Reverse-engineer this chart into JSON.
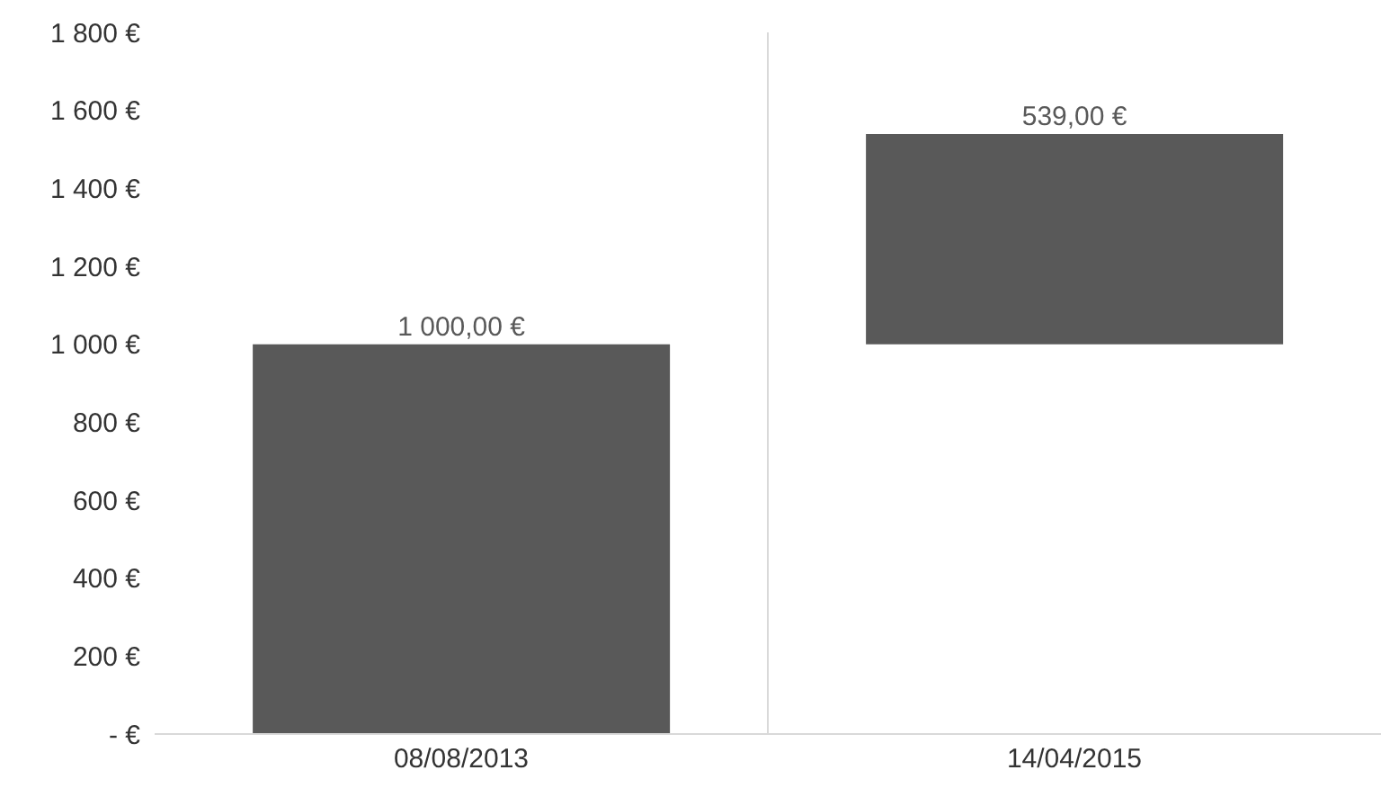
{
  "chart_data": {
    "type": "bar",
    "categories": [
      "08/08/2013",
      "14/04/2015"
    ],
    "values": [
      1000,
      539
    ],
    "base": [
      0,
      1000
    ],
    "color": "#595959",
    "value_labels": [
      "1 000,00 €",
      "539,00 €"
    ],
    "ylim": [
      0,
      1800
    ],
    "yticks": [
      {
        "value": 0,
        "label": "- €"
      },
      {
        "value": 200,
        "label": "200 €"
      },
      {
        "value": 400,
        "label": "400 €"
      },
      {
        "value": 600,
        "label": "600 €"
      },
      {
        "value": 800,
        "label": "800 €"
      },
      {
        "value": 1000,
        "label": "1 000 €"
      },
      {
        "value": 1200,
        "label": "1 200 €"
      },
      {
        "value": 1400,
        "label": "1 400 €"
      },
      {
        "value": 1600,
        "label": "1 600 €"
      },
      {
        "value": 1800,
        "label": "1 800 €"
      }
    ],
    "grid": "x"
  }
}
